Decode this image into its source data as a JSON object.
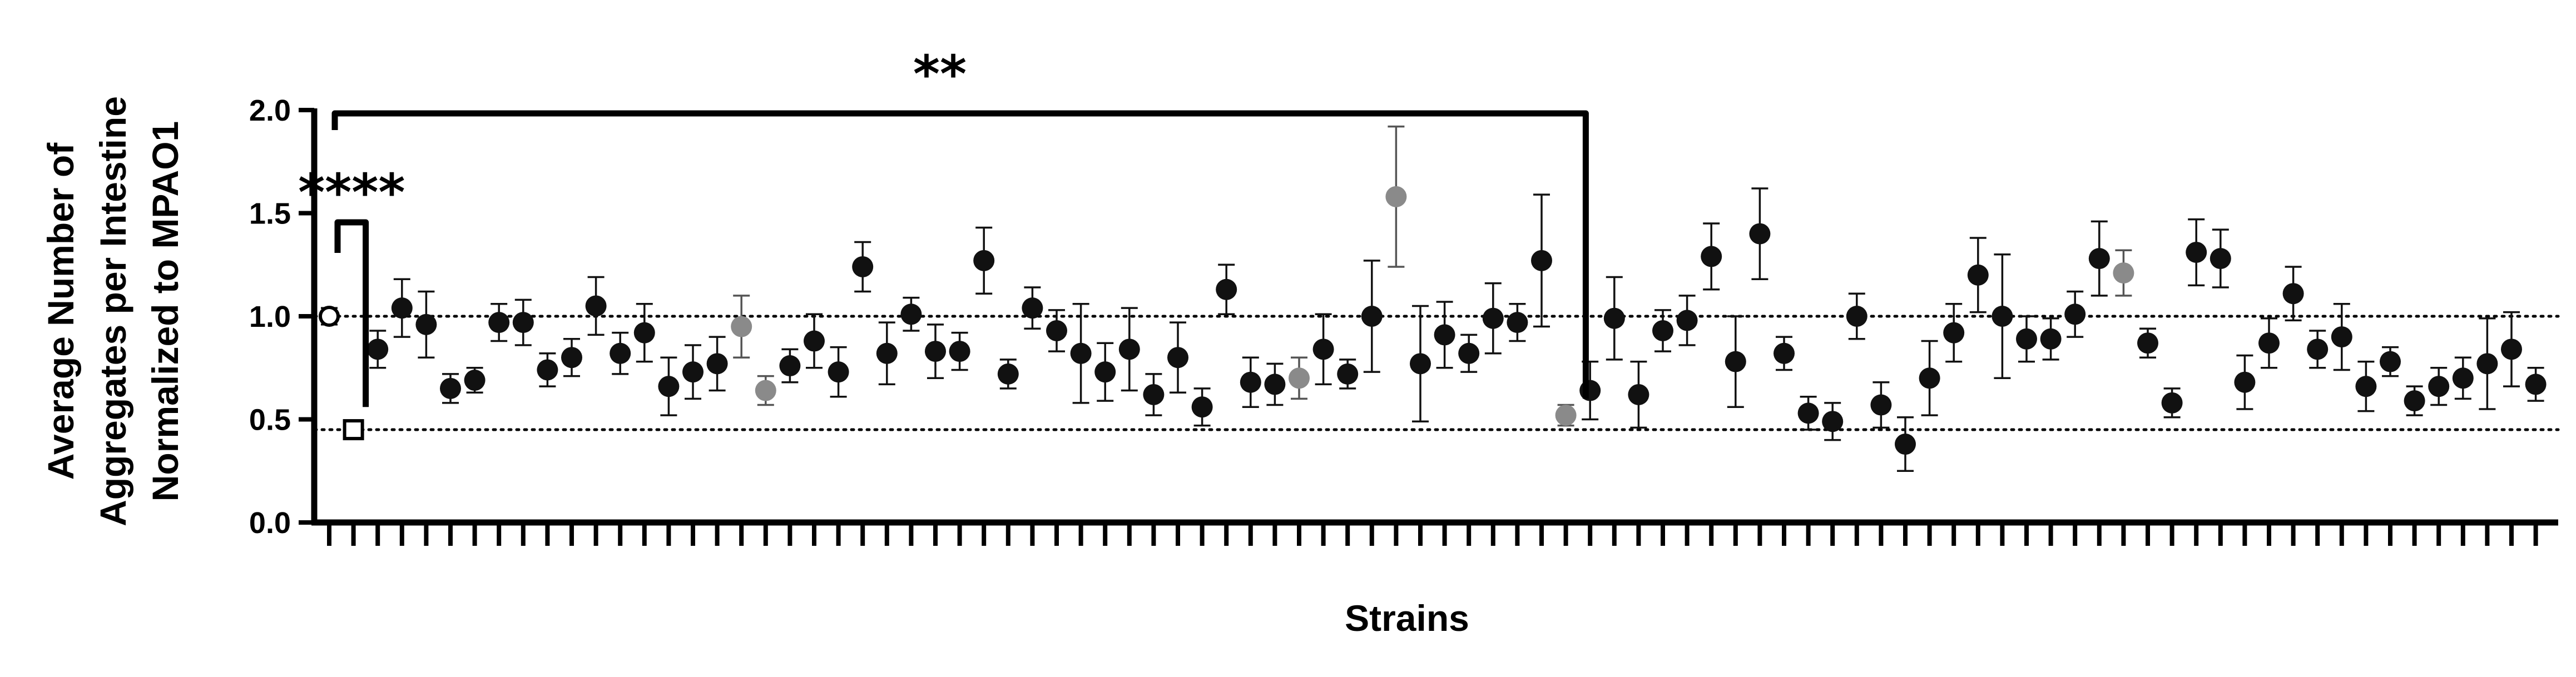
{
  "chart_data": {
    "type": "scatter",
    "title": "",
    "xlabel": "Strains",
    "ylabel_lines": [
      "Average Number of",
      "Aggregates per Intestine",
      "Normalized to  MPAO1"
    ],
    "ylim": [
      0,
      2.0
    ],
    "yticks": [
      "0.0",
      "0.5",
      "1.0",
      "1.5",
      "2.0"
    ],
    "ytick_values": [
      0,
      0.5,
      1.0,
      1.5,
      2.0
    ],
    "reference_lines": [
      1.0,
      0.45
    ],
    "grid": false,
    "colors": {
      "black": "#111111",
      "grey": "#8a8a8a",
      "axis": "#000000"
    },
    "significance": [
      {
        "label": "****",
        "from_index": 0,
        "to_index": 1
      },
      {
        "label": "**",
        "from_index": 0,
        "to_index": 52
      }
    ],
    "points": [
      {
        "y": 1.0,
        "err": 0.04,
        "color": "open-circle"
      },
      {
        "y": 0.45,
        "err": 0.04,
        "color": "open-square"
      },
      {
        "y": 0.84,
        "err": 0.09,
        "color": "black"
      },
      {
        "y": 1.04,
        "err": 0.14,
        "color": "black"
      },
      {
        "y": 0.96,
        "err": 0.16,
        "color": "black"
      },
      {
        "y": 0.65,
        "err": 0.07,
        "color": "black"
      },
      {
        "y": 0.69,
        "err": 0.06,
        "color": "black"
      },
      {
        "y": 0.97,
        "err": 0.09,
        "color": "black"
      },
      {
        "y": 0.97,
        "err": 0.11,
        "color": "black"
      },
      {
        "y": 0.74,
        "err": 0.08,
        "color": "black"
      },
      {
        "y": 0.8,
        "err": 0.09,
        "color": "black"
      },
      {
        "y": 1.05,
        "err": 0.14,
        "color": "black"
      },
      {
        "y": 0.82,
        "err": 0.1,
        "color": "black"
      },
      {
        "y": 0.92,
        "err": 0.14,
        "color": "black"
      },
      {
        "y": 0.66,
        "err": 0.14,
        "color": "black"
      },
      {
        "y": 0.73,
        "err": 0.13,
        "color": "black"
      },
      {
        "y": 0.77,
        "err": 0.13,
        "color": "black"
      },
      {
        "y": 0.95,
        "err": 0.15,
        "color": "grey"
      },
      {
        "y": 0.64,
        "err": 0.07,
        "color": "grey"
      },
      {
        "y": 0.76,
        "err": 0.08,
        "color": "black"
      },
      {
        "y": 0.88,
        "err": 0.13,
        "color": "black"
      },
      {
        "y": 0.73,
        "err": 0.12,
        "color": "black"
      },
      {
        "y": 1.24,
        "err": 0.12,
        "color": "black"
      },
      {
        "y": 0.82,
        "err": 0.15,
        "color": "black"
      },
      {
        "y": 1.01,
        "err": 0.08,
        "color": "black"
      },
      {
        "y": 0.83,
        "err": 0.13,
        "color": "black"
      },
      {
        "y": 0.83,
        "err": 0.09,
        "color": "black"
      },
      {
        "y": 1.27,
        "err": 0.16,
        "color": "black"
      },
      {
        "y": 0.72,
        "err": 0.07,
        "color": "black"
      },
      {
        "y": 1.04,
        "err": 0.1,
        "color": "black"
      },
      {
        "y": 0.93,
        "err": 0.1,
        "color": "black"
      },
      {
        "y": 0.82,
        "err": 0.24,
        "color": "black"
      },
      {
        "y": 0.73,
        "err": 0.14,
        "color": "black"
      },
      {
        "y": 0.84,
        "err": 0.2,
        "color": "black"
      },
      {
        "y": 0.62,
        "err": 0.1,
        "color": "black"
      },
      {
        "y": 0.8,
        "err": 0.17,
        "color": "black"
      },
      {
        "y": 0.56,
        "err": 0.09,
        "color": "black"
      },
      {
        "y": 1.13,
        "err": 0.12,
        "color": "black"
      },
      {
        "y": 0.68,
        "err": 0.12,
        "color": "black"
      },
      {
        "y": 0.67,
        "err": 0.1,
        "color": "black"
      },
      {
        "y": 0.7,
        "err": 0.1,
        "color": "grey"
      },
      {
        "y": 0.84,
        "err": 0.17,
        "color": "black"
      },
      {
        "y": 0.72,
        "err": 0.07,
        "color": "black"
      },
      {
        "y": 1.0,
        "err": 0.27,
        "color": "black"
      },
      {
        "y": 1.58,
        "err": 0.34,
        "color": "grey"
      },
      {
        "y": 0.77,
        "err": 0.28,
        "color": "black"
      },
      {
        "y": 0.91,
        "err": 0.16,
        "color": "black"
      },
      {
        "y": 0.82,
        "err": 0.09,
        "color": "black"
      },
      {
        "y": 0.99,
        "err": 0.17,
        "color": "black"
      },
      {
        "y": 0.97,
        "err": 0.09,
        "color": "black"
      },
      {
        "y": 1.27,
        "err": 0.32,
        "color": "black"
      },
      {
        "y": 0.52,
        "err": 0.05,
        "color": "grey"
      },
      {
        "y": 0.64,
        "err": 0.14,
        "color": "black"
      },
      {
        "y": 0.99,
        "err": 0.2,
        "color": "black"
      },
      {
        "y": 0.62,
        "err": 0.16,
        "color": "black"
      },
      {
        "y": 0.93,
        "err": 0.1,
        "color": "black"
      },
      {
        "y": 0.98,
        "err": 0.12,
        "color": "black"
      },
      {
        "y": 1.29,
        "err": 0.16,
        "color": "black"
      },
      {
        "y": 0.78,
        "err": 0.22,
        "color": "black"
      },
      {
        "y": 1.4,
        "err": 0.22,
        "color": "black"
      },
      {
        "y": 0.82,
        "err": 0.08,
        "color": "black"
      },
      {
        "y": 0.53,
        "err": 0.08,
        "color": "black"
      },
      {
        "y": 0.49,
        "err": 0.09,
        "color": "black"
      },
      {
        "y": 1.0,
        "err": 0.11,
        "color": "black"
      },
      {
        "y": 0.57,
        "err": 0.11,
        "color": "black"
      },
      {
        "y": 0.38,
        "err": 0.13,
        "color": "black"
      },
      {
        "y": 0.7,
        "err": 0.18,
        "color": "black"
      },
      {
        "y": 0.92,
        "err": 0.14,
        "color": "black"
      },
      {
        "y": 1.2,
        "err": 0.18,
        "color": "black"
      },
      {
        "y": 1.0,
        "err": 0.3,
        "color": "black"
      },
      {
        "y": 0.89,
        "err": 0.11,
        "color": "black"
      },
      {
        "y": 0.89,
        "err": 0.1,
        "color": "black"
      },
      {
        "y": 1.01,
        "err": 0.11,
        "color": "black"
      },
      {
        "y": 1.28,
        "err": 0.18,
        "color": "black"
      },
      {
        "y": 1.21,
        "err": 0.11,
        "color": "grey"
      },
      {
        "y": 0.87,
        "err": 0.07,
        "color": "black"
      },
      {
        "y": 0.58,
        "err": 0.07,
        "color": "black"
      },
      {
        "y": 1.31,
        "err": 0.16,
        "color": "black"
      },
      {
        "y": 1.28,
        "err": 0.14,
        "color": "black"
      },
      {
        "y": 0.68,
        "err": 0.13,
        "color": "black"
      },
      {
        "y": 0.87,
        "err": 0.12,
        "color": "black"
      },
      {
        "y": 1.11,
        "err": 0.13,
        "color": "black"
      },
      {
        "y": 0.84,
        "err": 0.09,
        "color": "black"
      },
      {
        "y": 0.9,
        "err": 0.16,
        "color": "black"
      },
      {
        "y": 0.66,
        "err": 0.12,
        "color": "black"
      },
      {
        "y": 0.78,
        "err": 0.07,
        "color": "black"
      },
      {
        "y": 0.59,
        "err": 0.07,
        "color": "black"
      },
      {
        "y": 0.66,
        "err": 0.09,
        "color": "black"
      },
      {
        "y": 0.7,
        "err": 0.1,
        "color": "black"
      },
      {
        "y": 0.77,
        "err": 0.22,
        "color": "black"
      },
      {
        "y": 0.84,
        "err": 0.18,
        "color": "black"
      },
      {
        "y": 0.67,
        "err": 0.08,
        "color": "black"
      }
    ]
  }
}
